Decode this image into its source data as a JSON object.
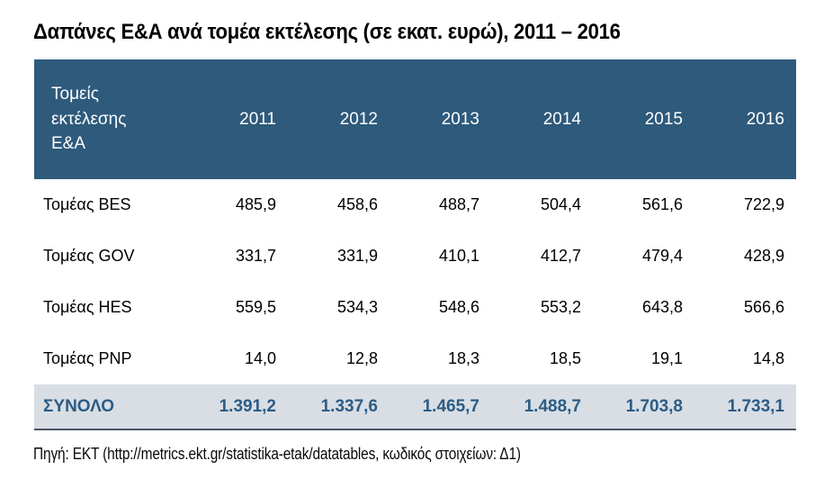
{
  "title": "Δαπάνες Ε&Α ανά τομέα εκτέλεσης (σε εκατ. ευρώ), 2011 – 2016",
  "table": {
    "header": {
      "label": "Τομείς εκτέλεσης Ε&Α",
      "years": [
        "2011",
        "2012",
        "2013",
        "2014",
        "2015",
        "2016"
      ]
    },
    "rows": [
      {
        "label": "Τομέας BES",
        "values": [
          "485,9",
          "458,6",
          "488,7",
          "504,4",
          "561,6",
          "722,9"
        ]
      },
      {
        "label": "Τομέας GOV",
        "values": [
          "331,7",
          "331,9",
          "410,1",
          "412,7",
          "479,4",
          "428,9"
        ]
      },
      {
        "label": "Τομέας HES",
        "values": [
          "559,5",
          "534,3",
          "548,6",
          "553,2",
          "643,8",
          "566,6"
        ]
      },
      {
        "label": "Τομέας PNP",
        "values": [
          "14,0",
          "12,8",
          "18,3",
          "18,5",
          "19,1",
          "14,8"
        ]
      }
    ],
    "total": {
      "label": "ΣΥΝΟΛΟ",
      "values": [
        "1.391,2",
        "1.337,6",
        "1.465,7",
        "1.488,7",
        "1.703,8",
        "1.733,1"
      ]
    }
  },
  "source": "Πηγή: ΕΚΤ (http://metrics.ekt.gr/statistika-etak/datatables, κωδικός στοιχείων: Δ1)",
  "colors": {
    "header_bg": "#2E5A7C",
    "header_text": "#FFFFFF",
    "total_row_bg": "#D9DEE4",
    "total_row_text": "#2B5C87",
    "table_bottom_border": "#4A5568"
  }
}
